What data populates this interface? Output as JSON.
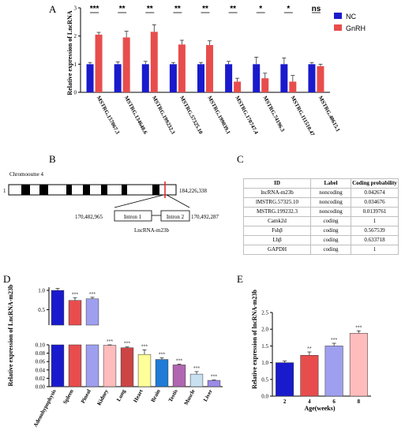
{
  "colors": {
    "nc": "#1a1acd",
    "gnrh": "#e84d4d",
    "errbar": "#555555"
  },
  "panels": {
    "a": "A",
    "b": "B",
    "c": "C",
    "d": "D",
    "e": "E"
  },
  "chart_data": [
    {
      "type": "bar",
      "panel": "A",
      "ylabel": "Relative expression of LncRNA",
      "ylim": [
        0,
        3
      ],
      "yticks": [
        "0",
        "1",
        "2",
        "3"
      ],
      "categories": [
        "MSTRG.157067.3",
        "MSTRG.134648.6",
        "MSTRG.199232.3",
        "MSTRG.57325.10",
        "MSTRG.199039.1",
        "MSTRG.170747.4",
        "MSTRG.74196.3",
        "MSTRG.111510.47",
        "MSTRG.40615.1"
      ],
      "series": [
        {
          "name": "NC",
          "values": [
            1.0,
            1.0,
            1.0,
            1.0,
            1.0,
            1.0,
            1.0,
            1.0,
            1.0
          ],
          "errors": [
            0.06,
            0.08,
            0.1,
            0.06,
            0.06,
            0.1,
            0.25,
            0.22,
            0.06
          ]
        },
        {
          "name": "GnRH",
          "values": [
            2.05,
            1.95,
            2.15,
            1.7,
            1.68,
            0.38,
            0.5,
            0.38,
            0.93
          ],
          "errors": [
            0.08,
            0.22,
            0.25,
            0.15,
            0.15,
            0.12,
            0.18,
            0.22,
            0.07
          ]
        }
      ],
      "significance": [
        "***",
        "**",
        "**",
        "**",
        "**",
        "**",
        "*",
        "*",
        "ns"
      ],
      "legend": "top-right"
    },
    {
      "type": "bar",
      "panel": "D",
      "ylabel": "Relative expression of LncRNA-m23b",
      "broken_axis": true,
      "ylim_upper": [
        0.1,
        1.0
      ],
      "ylim_lower": [
        0,
        0.1
      ],
      "yticks_upper": [
        "1.0",
        "0.5"
      ],
      "yticks_lower": [
        "0.10",
        "0.08",
        "0.06",
        "0.04",
        "0.02",
        "0.00"
      ],
      "categories": [
        "Adenohypophysis",
        "Spleen",
        "Pineal",
        "Kidney",
        "Lung",
        "Heart",
        "Brain",
        "Testis",
        "Muscle",
        "Liver"
      ],
      "values": [
        1.0,
        0.74,
        0.78,
        0.099,
        0.093,
        0.077,
        0.065,
        0.052,
        0.03,
        0.015
      ],
      "errors": [
        0.05,
        0.07,
        0.04,
        0.001,
        0.002,
        0.011,
        0.004,
        0.002,
        0.006,
        0.001
      ],
      "colors": [
        "#1a1acd",
        "#e84d4d",
        "#9f9ff0",
        "#ffbcbc",
        "#cc4444",
        "#ffff99",
        "#1f7bd6",
        "#b066b0",
        "#c8e0f0",
        "#9b8ae8"
      ],
      "significance": [
        "",
        "***",
        "***",
        "***",
        "***",
        "***",
        "***",
        "***",
        "***",
        "***"
      ]
    },
    {
      "type": "bar",
      "panel": "E",
      "xlabel": "Age(weeks)",
      "ylabel": "Relative expression of lncRNA-m23b",
      "ylim": [
        0,
        2.5
      ],
      "yticks": [
        "0.0",
        "0.5",
        "1.0",
        "1.5",
        "2.0",
        "2.5"
      ],
      "categories": [
        "2",
        "4",
        "6",
        "8"
      ],
      "values": [
        1.0,
        1.22,
        1.5,
        1.88
      ],
      "errors": [
        0.05,
        0.1,
        0.08,
        0.07
      ],
      "colors": [
        "#1a1acd",
        "#e84d4d",
        "#9f9ff0",
        "#ffbcbc"
      ],
      "significance": [
        "",
        "**",
        "***",
        "***"
      ]
    }
  ],
  "panel_b": {
    "chromosome": "Chromoosme 4",
    "start": "1",
    "end": "184,226,338",
    "coord_left": "170,482,965",
    "coord_right": "170,492,287",
    "intron1": "Intron 1",
    "intron2": "Intron 2",
    "gene": "LncRNA-m23b"
  },
  "panel_c": {
    "headers": [
      "ID",
      "Label",
      "Coding probability"
    ],
    "rows": [
      [
        "lncRNA-m23b",
        "noncoding",
        "0.042674"
      ],
      [
        "lMSTRG.57325.10",
        "noncoding",
        "0.034676"
      ],
      [
        "MSTRG.199232.3",
        "noncoding",
        "0.0139761"
      ],
      [
        "Camk2d",
        "coding",
        "1"
      ],
      [
        "Fshβ",
        "coding",
        "0.567539"
      ],
      [
        "Lhβ",
        "coding",
        "0.633718"
      ],
      [
        "GAPDH",
        "coding",
        "1"
      ]
    ]
  }
}
